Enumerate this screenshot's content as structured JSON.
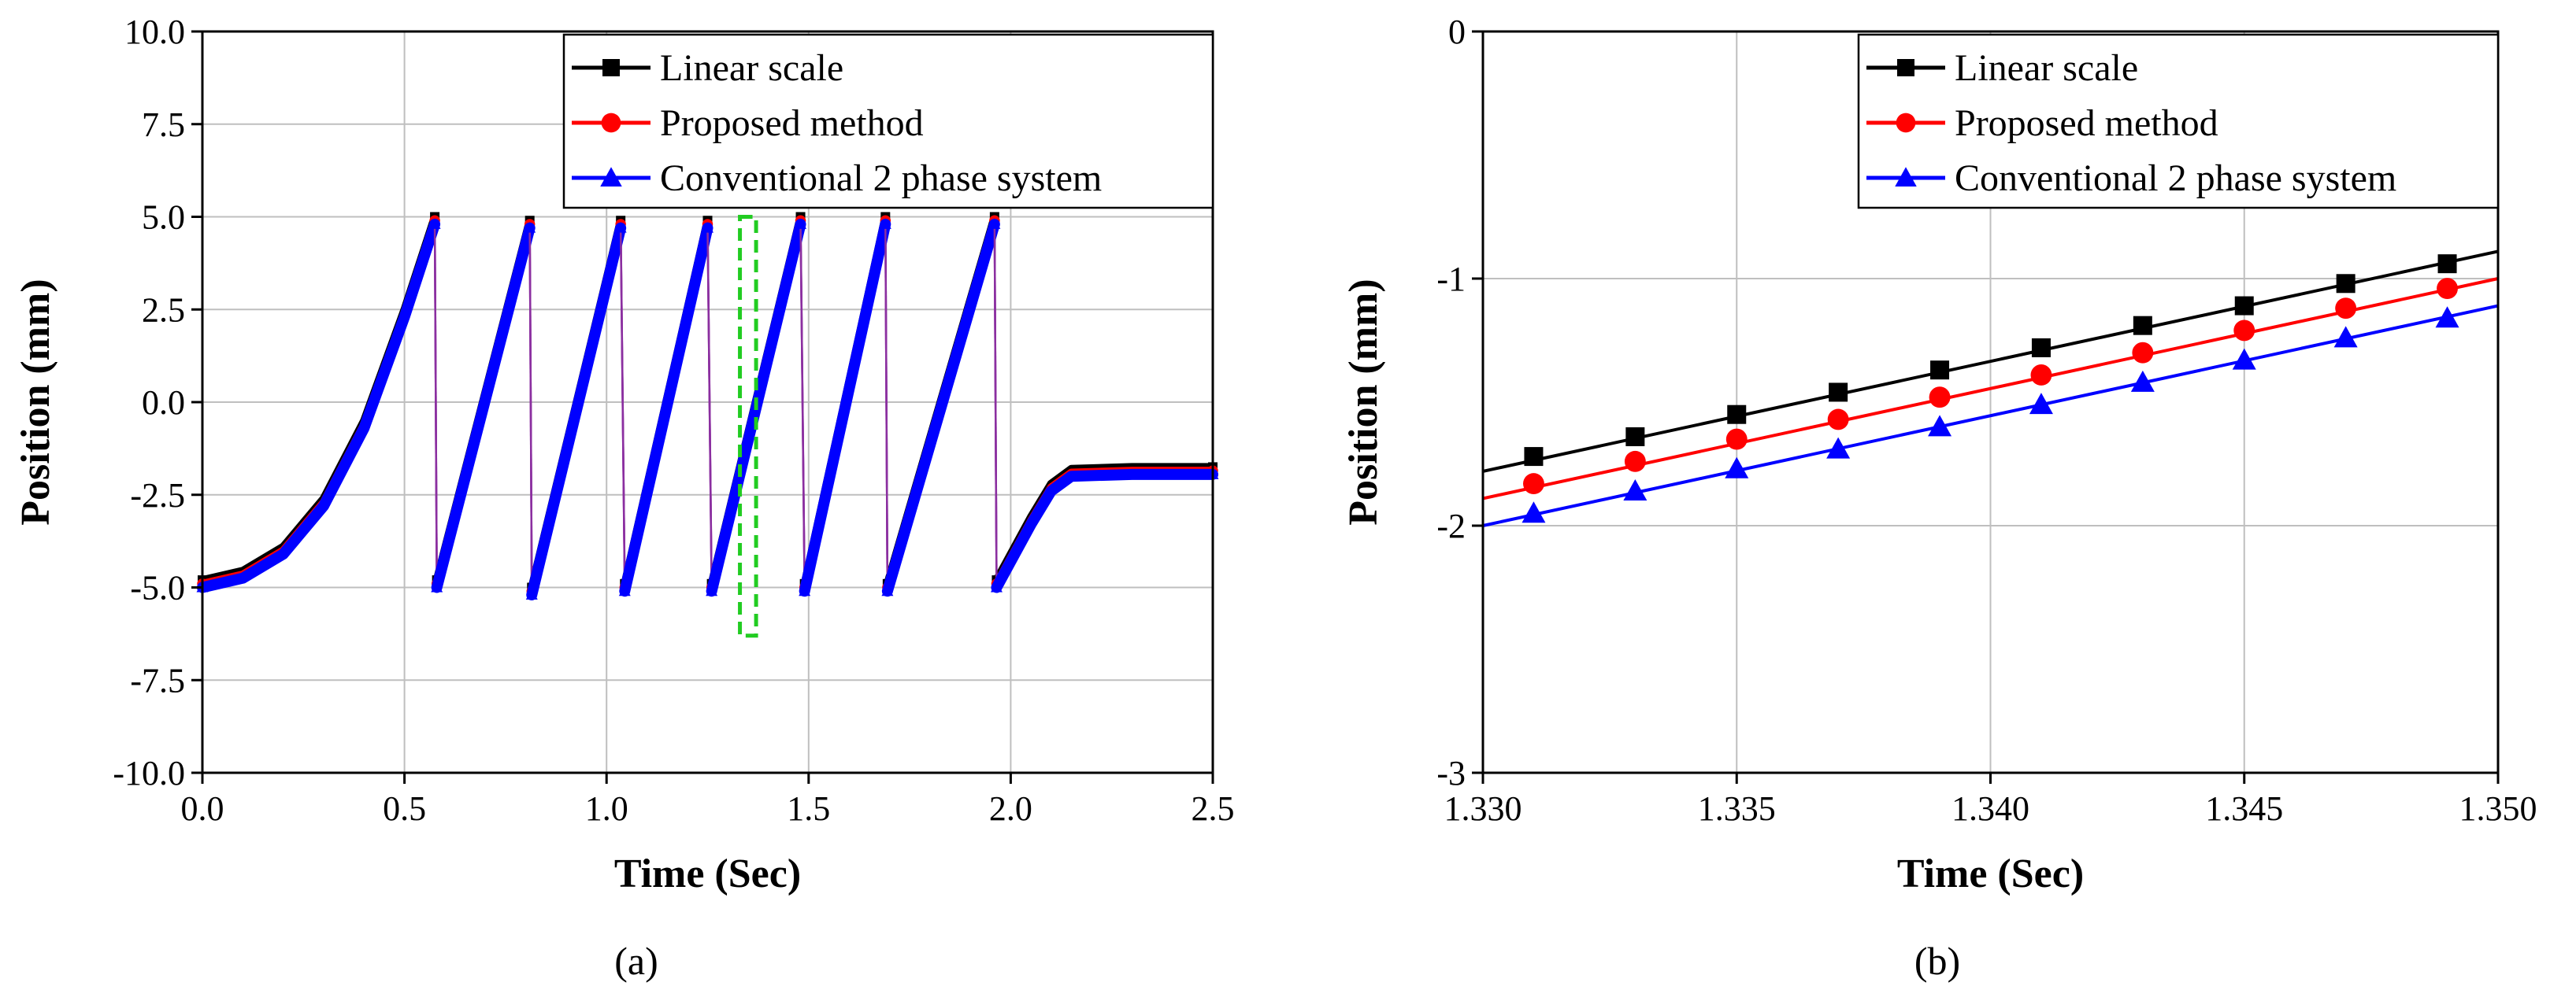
{
  "chart_data": [
    {
      "type": "line",
      "panel_label": "(a)",
      "xlabel": "Time (Sec)",
      "ylabel": "Position (mm)",
      "xlim": [
        0.0,
        2.5
      ],
      "ylim": [
        -10.0,
        10.0
      ],
      "xticks": [
        0.0,
        0.5,
        1.0,
        1.5,
        2.0,
        2.5
      ],
      "xtick_labels": [
        "0.0",
        "0.5",
        "1.0",
        "1.5",
        "2.0",
        "2.5"
      ],
      "yticks": [
        -10.0,
        -7.5,
        -5.0,
        -2.5,
        0.0,
        2.5,
        5.0,
        7.5,
        10.0
      ],
      "ytick_labels": [
        "-10.0",
        "-7.5",
        "-5.0",
        "-2.5",
        "0.0",
        "2.5",
        "5.0",
        "7.5",
        "10.0"
      ],
      "grid": true,
      "legend_position": "top-right",
      "zoom_box": {
        "x_range": [
          1.33,
          1.37
        ],
        "y_range": [
          -6.3,
          5.0
        ],
        "color": "#22cc22"
      },
      "segments": [
        {
          "x": [
            0.0,
            0.1,
            0.2,
            0.3,
            0.4,
            0.5,
            0.575
          ],
          "y": [
            -4.8,
            -4.55,
            -3.9,
            -2.6,
            -0.5,
            2.5,
            5.0
          ]
        },
        {
          "x": [
            0.58,
            0.81
          ],
          "y": [
            -4.8,
            4.9
          ]
        },
        {
          "x": [
            0.815,
            1.035
          ],
          "y": [
            -5.0,
            4.9
          ]
        },
        {
          "x": [
            1.045,
            1.25
          ],
          "y": [
            -4.9,
            4.9
          ]
        },
        {
          "x": [
            1.26,
            1.48
          ],
          "y": [
            -4.9,
            5.0
          ]
        },
        {
          "x": [
            1.49,
            1.69
          ],
          "y": [
            -4.9,
            5.0
          ]
        },
        {
          "x": [
            1.695,
            1.96
          ],
          "y": [
            -4.9,
            5.0
          ]
        },
        {
          "x": [
            1.965,
            2.05,
            2.1,
            2.15,
            2.3,
            2.5
          ],
          "y": [
            -4.8,
            -3.1,
            -2.2,
            -1.8,
            -1.75,
            -1.75
          ]
        }
      ],
      "series": [
        {
          "name": "Linear scale",
          "color": "#000000",
          "marker": "square",
          "y_offset": 0.0
        },
        {
          "name": "Proposed method",
          "color": "#ff0000",
          "marker": "circle",
          "y_offset": -0.1
        },
        {
          "name": "Conventional 2 phase system",
          "color": "#0000ff",
          "marker": "triangle",
          "y_offset": -0.2
        }
      ]
    },
    {
      "type": "line",
      "panel_label": "(b)",
      "xlabel": "Time (Sec)",
      "ylabel": "Position (mm)",
      "xlim": [
        1.33,
        1.35
      ],
      "ylim": [
        -3,
        0
      ],
      "xticks": [
        1.33,
        1.335,
        1.34,
        1.345,
        1.35
      ],
      "xtick_labels": [
        "1.330",
        "1.335",
        "1.340",
        "1.345",
        "1.350"
      ],
      "yticks": [
        -3,
        -2,
        -1,
        0
      ],
      "ytick_labels": [
        "-3",
        "-2",
        "-1",
        "0"
      ],
      "grid": true,
      "legend_position": "top-right",
      "series": [
        {
          "name": "Linear scale",
          "color": "#000000",
          "marker": "square",
          "line": {
            "x": [
              1.33,
              1.35
            ],
            "y": [
              -1.78,
              -0.89
            ]
          },
          "marker_x": [
            1.331,
            1.333,
            1.335,
            1.337,
            1.339,
            1.341,
            1.343,
            1.345,
            1.347,
            1.349
          ],
          "marker_y": [
            -1.72,
            -1.64,
            -1.55,
            -1.46,
            -1.37,
            -1.28,
            -1.19,
            -1.11,
            -1.02,
            -0.94
          ]
        },
        {
          "name": "Proposed method",
          "color": "#ff0000",
          "marker": "circle",
          "line": {
            "x": [
              1.33,
              1.35
            ],
            "y": [
              -1.89,
              -1.0
            ]
          },
          "marker_x": [
            1.331,
            1.333,
            1.335,
            1.337,
            1.339,
            1.341,
            1.343,
            1.345,
            1.347,
            1.349
          ],
          "marker_y": [
            -1.83,
            -1.74,
            -1.65,
            -1.57,
            -1.48,
            -1.39,
            -1.3,
            -1.21,
            -1.12,
            -1.04
          ]
        },
        {
          "name": "Conventional 2 phase system",
          "color": "#0000ff",
          "marker": "triangle",
          "line": {
            "x": [
              1.33,
              1.35
            ],
            "y": [
              -2.0,
              -1.11
            ]
          },
          "marker_x": [
            1.331,
            1.333,
            1.335,
            1.337,
            1.339,
            1.341,
            1.343,
            1.345,
            1.347,
            1.349
          ],
          "marker_y": [
            -1.95,
            -1.86,
            -1.77,
            -1.69,
            -1.6,
            -1.51,
            -1.42,
            -1.33,
            -1.24,
            -1.16
          ]
        }
      ]
    }
  ]
}
